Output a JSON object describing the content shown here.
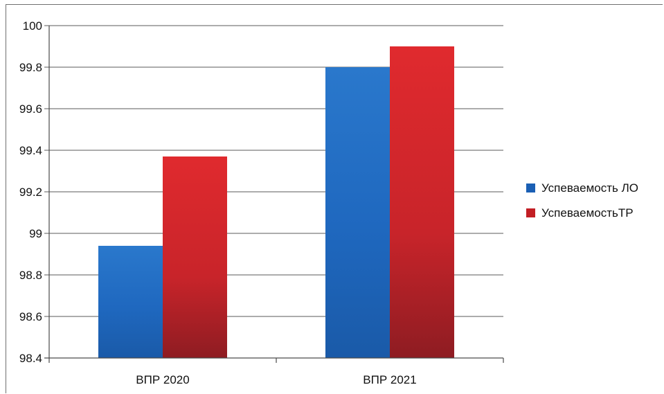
{
  "chart_data": {
    "type": "bar",
    "title": "",
    "xlabel": "",
    "ylabel": "",
    "categories": [
      "ВПР 2020",
      "ВПР 2021"
    ],
    "series": [
      {
        "name": "Успеваемость ЛО",
        "values": [
          98.94,
          99.8
        ],
        "color": "#1a5fb4",
        "color_light": "#2a78cc"
      },
      {
        "name": "УспеваемостьТР",
        "values": [
          99.37,
          99.9
        ],
        "color": "#c21e24",
        "color_light": "#e02a2e"
      }
    ],
    "ylim": [
      98.4,
      100
    ],
    "yticks": [
      "98.4",
      "98.6",
      "98.8",
      "99",
      "99.2",
      "99.4",
      "99.6",
      "99.8",
      "100"
    ],
    "grid": true,
    "legend_position": "right"
  }
}
